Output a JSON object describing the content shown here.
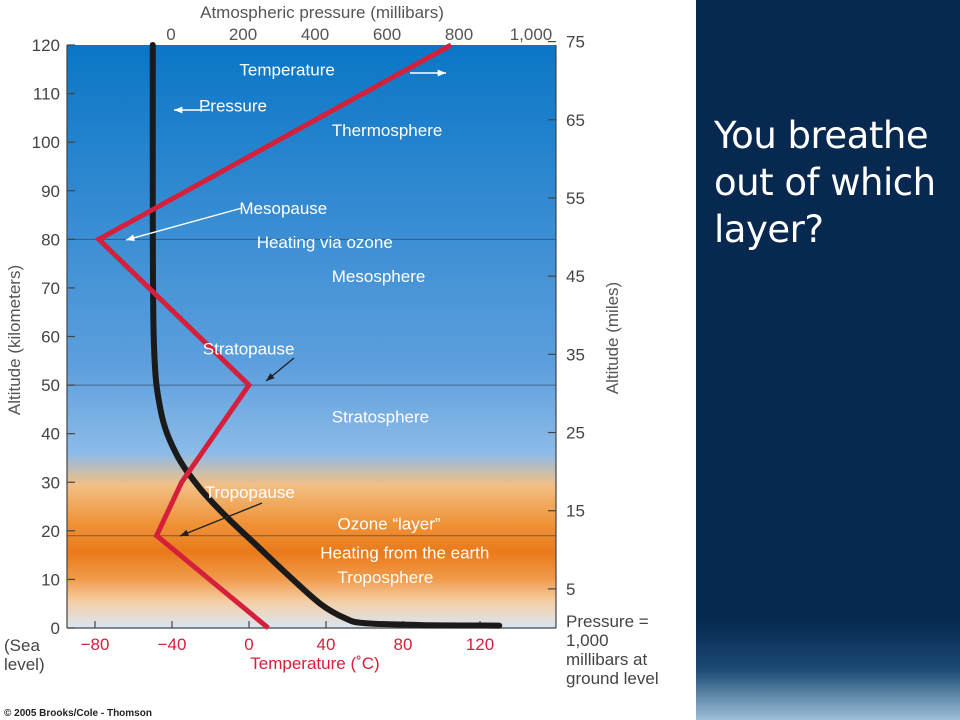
{
  "slide": {
    "question": "You breathe out of which layer?",
    "copyright": "© 2005 Brooks/Cole - Thomson",
    "colors": {
      "panel": "#07284f",
      "temperature_line": "#d4203a",
      "pressure_line": "#1a1a1a"
    }
  },
  "chart_data": {
    "type": "line",
    "top_axis_label": "Atmospheric pressure (millibars)",
    "top_ticks": [
      "0",
      "200",
      "400",
      "600",
      "800",
      "1,000"
    ],
    "top_tick_values": [
      0,
      200,
      400,
      600,
      800,
      1000
    ],
    "xlabel": "Temperature (˚C)",
    "x_ticks": [
      "−80",
      "−40",
      "0",
      "40",
      "80",
      "120"
    ],
    "x_tick_values": [
      -80,
      -40,
      0,
      40,
      80,
      120
    ],
    "xlim": [
      -100,
      128
    ],
    "ylabel": "Altitude (kilometers)",
    "y_ticks": [
      "120",
      "110",
      "100",
      "90",
      "80",
      "70",
      "60",
      "50",
      "40",
      "30",
      "20",
      "10",
      "0"
    ],
    "ylim": [
      0,
      120
    ],
    "y_zero_label": [
      "(Sea",
      "level)"
    ],
    "right_axis_label": "Altitude (miles)",
    "right_ticks": [
      "75",
      "65",
      "55",
      "45",
      "35",
      "25",
      "15",
      "5"
    ],
    "right_tick_values": [
      75,
      65,
      55,
      45,
      35,
      25,
      15,
      5
    ],
    "pressure_note": [
      "Pressure =",
      "1,000",
      "millibars at",
      "ground level"
    ],
    "series": [
      {
        "name": "Temperature",
        "x": [
          10,
          -48,
          -35,
          0,
          -78,
          105
        ],
        "y": [
          0,
          19,
          30,
          50,
          80,
          120
        ]
      },
      {
        "name": "Pressure",
        "x": [
          -50,
          -50,
          -49.5,
          -46,
          -38,
          -26,
          -12,
          4,
          20,
          37,
          50,
          60,
          90,
          130
        ],
        "y": [
          120,
          100,
          60,
          45,
          36,
          29,
          23,
          17,
          11,
          5,
          2,
          1,
          0.6,
          0.5
        ]
      }
    ],
    "boundaries": [
      80,
      50,
      19
    ],
    "annotations": [
      {
        "text": "Temperature",
        "x": -5,
        "y": 115
      },
      {
        "text": "Pressure",
        "x": -26,
        "y": 107.5
      },
      {
        "text": "Thermosphere",
        "x": 43,
        "y": 102.5
      },
      {
        "text": "Mesopause",
        "x": -5,
        "y": 86.5
      },
      {
        "text": "Heating via ozone",
        "x": 4,
        "y": 79.5
      },
      {
        "text": "Mesosphere",
        "x": 43,
        "y": 72.5
      },
      {
        "text": "Stratopause",
        "x": -24,
        "y": 57.5
      },
      {
        "text": "Stratosphere",
        "x": 43,
        "y": 43.5
      },
      {
        "text": "Tropopause",
        "x": -23,
        "y": 28
      },
      {
        "text": "Ozone “layer”",
        "x": 46,
        "y": 21.5
      },
      {
        "text": "Heating from the earth",
        "x": 37,
        "y": 15.5
      },
      {
        "text": "Troposphere",
        "x": 46,
        "y": 10.5
      }
    ]
  }
}
